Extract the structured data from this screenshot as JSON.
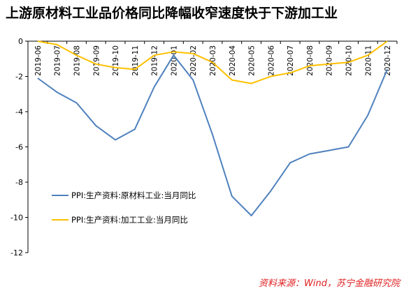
{
  "chart_data": {
    "type": "line",
    "title": "上游原材料工业品价格同比降幅收窄速度快于下游加工业",
    "categories": [
      "2019-06",
      "2019-07",
      "2019-08",
      "2019-09",
      "2019-10",
      "2019-11",
      "2019-12",
      "2020-01",
      "2020-02",
      "2020-03",
      "2020-04",
      "2020-05",
      "2020-06",
      "2020-07",
      "2020-08",
      "2020-09",
      "2020-10",
      "2020-11",
      "2020-12"
    ],
    "series": [
      {
        "name": "PPI:生产资料:原材料工业:当月同比",
        "color": "#4f81bd",
        "values": [
          -2.1,
          -2.9,
          -3.5,
          -4.8,
          -5.6,
          -5.0,
          -2.6,
          -0.8,
          -2.2,
          -5.3,
          -8.8,
          -9.9,
          -8.5,
          -6.9,
          -6.4,
          -6.2,
          -6.0,
          -4.2,
          -1.6
        ]
      },
      {
        "name": "PPI:生产资料:加工工业:当月同比",
        "color": "#ffc000",
        "values": [
          0.0,
          -0.2,
          -0.8,
          -1.3,
          -1.5,
          -1.6,
          -0.8,
          -0.6,
          -0.7,
          -1.2,
          -2.2,
          -2.4,
          -2.0,
          -1.8,
          -1.4,
          -1.3,
          -1.2,
          -0.8,
          0.0
        ]
      }
    ],
    "yticks": [
      0,
      -2,
      -4,
      -6,
      -8,
      -10,
      -12
    ],
    "ylim": [
      -12,
      0
    ],
    "grid": false,
    "legend_position": "lower-left inside",
    "source": "资料来源：Wind，苏宁金融研究院"
  }
}
